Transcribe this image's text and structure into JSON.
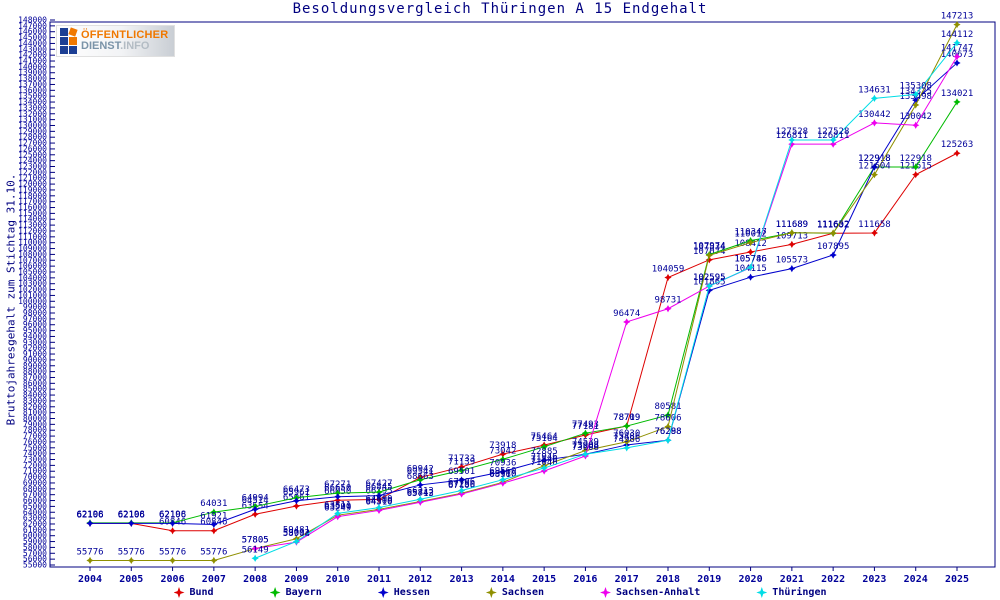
{
  "logo": {
    "text_top": "ÖFFENTLICHER",
    "text_bottom_primary": "DIENST",
    "text_bottom_secondary": ".INFO"
  },
  "chart_data": {
    "type": "line",
    "title": "Besoldungsvergleich Thüringen A 15 Endgehalt",
    "xlabel": "",
    "ylabel": "Bruttojahresgehalt zum Stichtag 31.10.",
    "x": [
      2004,
      2005,
      2006,
      2007,
      2008,
      2009,
      2010,
      2011,
      2012,
      2013,
      2014,
      2015,
      2016,
      2017,
      2018,
      2019,
      2020,
      2021,
      2022,
      2023,
      2024,
      2025
    ],
    "ylim": [
      55000,
      148000
    ],
    "ytick_step": 1000,
    "grid": false,
    "legend_position": "bottom",
    "point_labels": true,
    "axis_color": "#000080",
    "label_color": "#000099",
    "series": [
      {
        "name": "Bund",
        "color": "#dd0000",
        "values": [
          62106,
          62106,
          60846,
          60846,
          63654,
          65061,
          66050,
          66195,
          69942,
          71733,
          73918,
          75464,
          77181,
          78719,
          104059,
          107074,
          108412,
          109713,
          111602,
          111658,
          121615,
          125263
        ]
      },
      {
        "name": "Bayern",
        "color": "#00bb00",
        "values": [
          62198,
          62198,
          62198,
          64031,
          64994,
          66473,
          67271,
          67427,
          69541,
          71139,
          73042,
          75164,
          77493,
          78709,
          80581,
          107974,
          110347,
          111689,
          111602,
          122918,
          122918,
          134021
        ]
      },
      {
        "name": "Hessen",
        "color": "#0000cc",
        "values": [
          62106,
          62106,
          62106,
          61921,
          64514,
          65961,
          66650,
          66845,
          68663,
          69501,
          70936,
          72885,
          73908,
          75486,
          76298,
          101865,
          104115,
          105573,
          107895,
          122918,
          134325,
          140673
        ]
      },
      {
        "name": "Sachsen",
        "color": "#8f8f00",
        "values": [
          55776,
          55776,
          55776,
          55776,
          57805,
          59481,
          63500,
          64500,
          65842,
          67250,
          69110,
          71946,
          74539,
          76030,
          78606,
          107834,
          110012,
          111689,
          111652,
          121604,
          133498,
          147213
        ]
      },
      {
        "name": "Sachsen-Anhalt",
        "color": "#ee00ee",
        "values": [
          null,
          null,
          null,
          null,
          57805,
          58904,
          63249,
          64310,
          65713,
          67106,
          68960,
          71046,
          73608,
          96474,
          98731,
          102595,
          105746,
          126811,
          126811,
          130442,
          130042,
          141747
        ]
      },
      {
        "name": "Thüringen",
        "color": "#00dde6",
        "values": [
          null,
          null,
          null,
          null,
          56149,
          59012,
          63811,
          64800,
          66213,
          67706,
          69560,
          71546,
          73908,
          74986,
          76288,
          102595,
          105786,
          127528,
          127528,
          134631,
          135308,
          144112
        ]
      }
    ]
  }
}
